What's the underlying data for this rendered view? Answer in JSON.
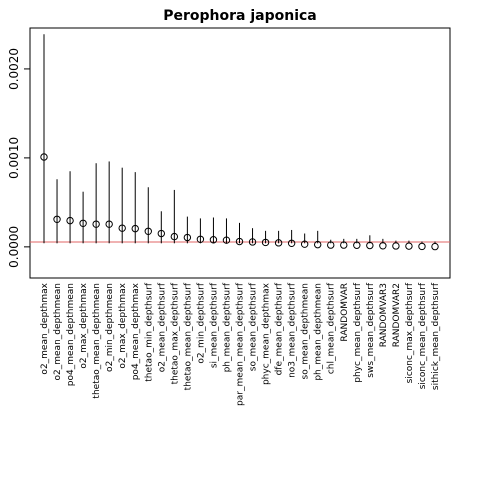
{
  "chart_data": {
    "type": "scatter",
    "title": "Perophora japonica",
    "xlabel": "",
    "ylabel": "",
    "ylim": [
      -0.00035,
      0.00246
    ],
    "yticks": [
      0.0,
      0.001,
      0.002
    ],
    "ytick_labels": [
      "0.0000",
      "0.0010",
      "0.0020"
    ],
    "reference_line": {
      "y": 5.5e-05,
      "color": "#e06666"
    },
    "grid": false,
    "legend": "none",
    "categories": [
      "o2_mean_depthmax",
      "o2_mean_depthmean",
      "po4_mean_depthmean",
      "o2_max_depthmax",
      "thetao_mean_depthmean",
      "o2_min_depthmean",
      "o2_max_depthmax",
      "po4_mean_depthmax",
      "thetao_min_depthsurf",
      "o2_mean_depthsurf",
      "thetao_max_depthsurf",
      "thetao_mean_depthsurf",
      "o2_min_depthsurf",
      "si_mean_depthsurf",
      "ph_mean_depthsurf",
      "par_mean_mean_depthsurf",
      "so_mean_depthsurf",
      "phyc_mean_depthmax",
      "dfe_mean_depthsurf",
      "no3_mean_depthsurf",
      "so_mean_depthmean",
      "ph_mean_depthmean",
      "chl_mean_depthsurf",
      "RANDOMVAR",
      "phyc_mean_depthsurf",
      "sws_mean_depthsurf",
      "RANDOMVAR3",
      "RANDOMVAR2",
      "siconc_max_depthsurf",
      "siconc_mean_depthsurf",
      "sithick_mean_depthsurf"
    ],
    "series": [
      {
        "values": [
          0.00101,
          0.00031,
          0.000295,
          0.000265,
          0.000255,
          0.000255,
          0.00021,
          0.000205,
          0.000175,
          0.00015,
          0.000115,
          0.000105,
          8.5e-05,
          8e-05,
          7.5e-05,
          6e-05,
          5.5e-05,
          5e-05,
          4.5e-05,
          4e-05,
          3e-05,
          2.5e-05,
          2e-05,
          2e-05,
          1.8e-05,
          1.5e-05,
          1.2e-05,
          1e-05,
          8e-06,
          5e-06,
          3e-06
        ],
        "upper": [
          0.00239,
          0.00076,
          0.00085,
          0.00062,
          0.00094,
          0.00096,
          0.00089,
          0.00084,
          0.00067,
          0.0004,
          0.00064,
          0.00034,
          0.00032,
          0.00033,
          0.00032,
          0.00027,
          0.00021,
          0.00018,
          0.00018,
          0.00019,
          0.00015,
          0.00018,
          8e-05,
          9e-05,
          9e-05,
          0.00013,
          9e-05,
          7e-05,
          7e-05,
          6e-05,
          6e-05
        ],
        "lower": [
          4e-05,
          4e-05,
          4e-05,
          4e-05,
          4e-05,
          4e-05,
          4e-05,
          4e-05,
          4e-05,
          4e-05,
          4e-05,
          4e-05,
          4e-05,
          4e-05,
          4e-05,
          4e-05,
          4e-05,
          4e-05,
          4e-05,
          4e-05,
          4e-05,
          4e-05,
          4e-05,
          4e-05,
          4e-05,
          4e-05,
          4e-05,
          4e-05,
          4e-05,
          4e-05,
          4e-05
        ]
      }
    ]
  }
}
